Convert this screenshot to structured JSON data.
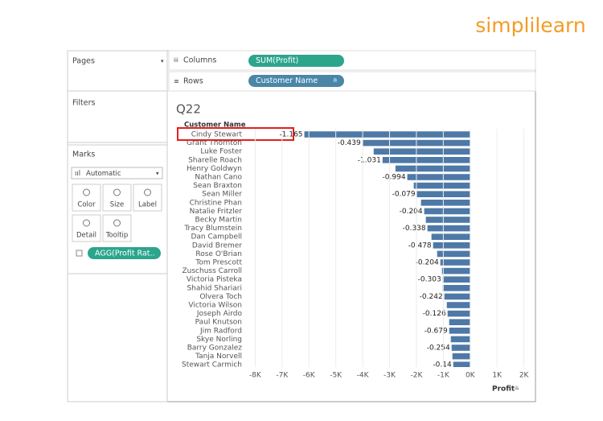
{
  "logo": "simplilearn",
  "panels": {
    "pages": "Pages",
    "filters": "Filters",
    "marks": "Marks",
    "mark_type": "Automatic",
    "mark_buttons": [
      "Color",
      "Size",
      "Label",
      "Detail",
      "Tooltip"
    ],
    "marks_pill": "AGG(Profit Rat.."
  },
  "shelves": {
    "columns_label": "Columns",
    "columns_pill": "SUM(Profit)",
    "rows_label": "Rows",
    "rows_pill": "Customer Name"
  },
  "chart_data": {
    "type": "hbar",
    "title": "Q22",
    "y_label": "Customer Name",
    "x_label": "Profit",
    "categories": [
      "Cindy Stewart",
      "Grant Thornton",
      "Luke Foster",
      "Sharelle Roach",
      "Henry Goldwyn",
      "Nathan Cano",
      "Sean Braxton",
      "Sean Miller",
      "Christine Phan",
      "Natalie Fritzler",
      "Becky Martin",
      "Tracy Blumstein",
      "Dan Campbell",
      "David Bremer",
      "Rose O'Brian",
      "Tom Prescott",
      "Zuschuss Carroll",
      "Victoria Pisteka",
      "Shahid Shariari",
      "Olvera Toch",
      "Victoria Wilson",
      "Joseph Airdo",
      "Paul Knutson",
      "Jim Radford",
      "Skye Norling",
      "Barry Gonzalez",
      "Tanja Norvell",
      "Stewart Carmich"
    ],
    "values": [
      -6170,
      -4010,
      -3590,
      -3260,
      -2780,
      -2340,
      -2100,
      -1980,
      -1830,
      -1710,
      -1650,
      -1590,
      -1440,
      -1380,
      -1230,
      -1110,
      -1050,
      -1020,
      -1020,
      -960,
      -870,
      -840,
      -780,
      -780,
      -720,
      -690,
      -660,
      -630
    ],
    "profit_ratio_labels": [
      -1.165,
      -0.439,
      null,
      -1.031,
      null,
      -0.994,
      null,
      -0.079,
      null,
      -0.204,
      null,
      -0.338,
      null,
      -0.478,
      null,
      -0.204,
      null,
      -0.303,
      null,
      -0.242,
      null,
      -0.126,
      null,
      -0.679,
      null,
      -0.254,
      null,
      -0.14
    ],
    "color": "#4e79a7",
    "xlim": [
      -8400,
      2250
    ],
    "xticks": [
      {
        "value": -8000,
        "label": "-8K"
      },
      {
        "value": -7000,
        "label": "-7K"
      },
      {
        "value": -6000,
        "label": "-6K"
      },
      {
        "value": -5000,
        "label": "-5K"
      },
      {
        "value": -4000,
        "label": "-4K"
      },
      {
        "value": -3000,
        "label": "-3K"
      },
      {
        "value": -2000,
        "label": "-2K"
      },
      {
        "value": -1000,
        "label": "-1K"
      },
      {
        "value": 0,
        "label": "0K"
      },
      {
        "value": 1000,
        "label": "1K"
      },
      {
        "value": 2000,
        "label": "2K"
      }
    ],
    "grid": true,
    "highlight_row": 0
  }
}
